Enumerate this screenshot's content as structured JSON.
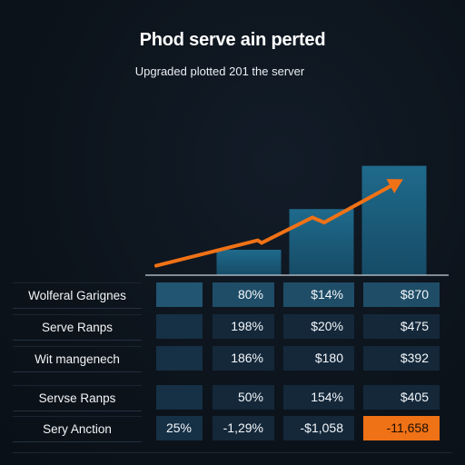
{
  "chart_data": {
    "type": "bar",
    "title": "Phod serve ain perted",
    "subtitle": "Upgraded plotted 201 the server",
    "categories": [
      "",
      "",
      "",
      ""
    ],
    "values": [
      null,
      1.0,
      2.6,
      4.3
    ],
    "trend_line": [
      [
        0.0,
        0.3
      ],
      [
        1.3,
        1.3
      ],
      [
        1.35,
        1.2
      ],
      [
        2.0,
        2.2
      ],
      [
        2.15,
        2.0
      ],
      [
        3.1,
        3.6
      ]
    ],
    "colors": {
      "bar": "#1b5b7a",
      "trend": "#f07216",
      "baseline": "#c9d1d9",
      "table_cell": "#14283a",
      "table_cell_highlight": "#1f4d67",
      "table_cell_accent": "#f07216"
    },
    "table": {
      "rows": [
        {
          "label": "Wolferal Garignes",
          "cells": [
            "",
            "80%",
            "$14%",
            "$870"
          ],
          "highlight": true
        },
        {
          "label": "Serve Ranps",
          "cells": [
            "",
            "198%",
            "$20%",
            "$475"
          ],
          "highlight": false
        },
        {
          "label": "Wit mangenech",
          "cells": [
            "",
            "186%",
            "$180",
            "$392"
          ],
          "highlight": false
        },
        {
          "label": "Servse Ranps",
          "cells": [
            "",
            "50%",
            "154%",
            "$405"
          ],
          "highlight": false
        },
        {
          "label": "Sery Anction",
          "cells": [
            "25%",
            "-1,29%",
            "-$1,058",
            "-11,658"
          ],
          "highlight": false,
          "accent_last": true
        }
      ]
    }
  }
}
